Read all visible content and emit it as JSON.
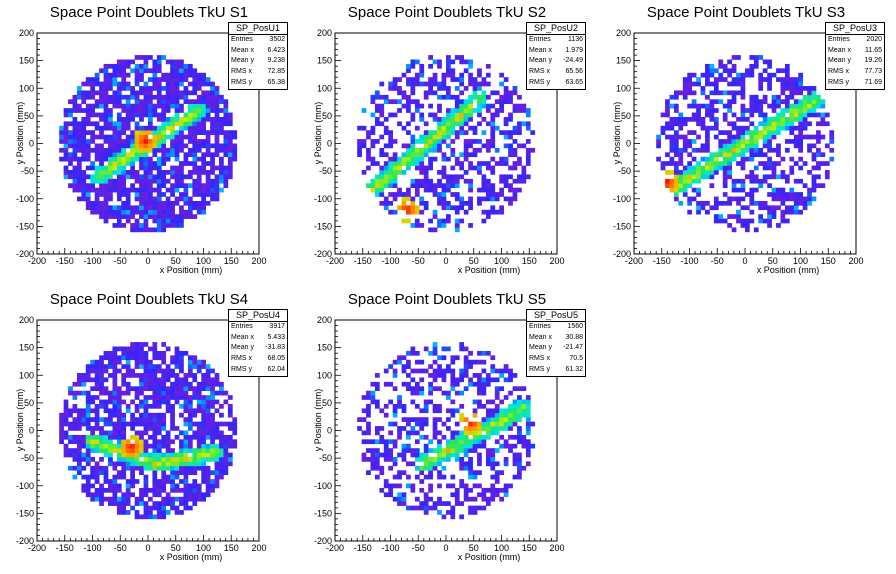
{
  "chart_data": [
    {
      "type": "heatmap",
      "title": "Space Point Doublets TkU S1",
      "xlabel": "x Position (mm)",
      "ylabel": "y Position (mm)",
      "xlim": [
        -200,
        200
      ],
      "ylim": [
        -200,
        200
      ],
      "x_ticks": [
        "-200",
        "-150",
        "-100",
        "-50",
        "0",
        "50",
        "100",
        "150",
        "200"
      ],
      "y_ticks": [
        "-200",
        "-150",
        "-100",
        "-50",
        "0",
        "50",
        "100",
        "150",
        "200"
      ],
      "detector_radius_mm": 160,
      "bin_size_mm": 8,
      "band": {
        "description": "diagonal",
        "from": [
          -90,
          -60
        ],
        "to": [
          90,
          60
        ],
        "hotspot": [
          -5,
          5
        ]
      },
      "stats": {
        "name": "SP_PosU1",
        "rows": [
          {
            "label": "Entries",
            "value": "3502"
          },
          {
            "label": "Mean x",
            "value": "6.423"
          },
          {
            "label": "Mean y",
            "value": "9.238"
          },
          {
            "label": "RMS x",
            "value": "72.85"
          },
          {
            "label": "RMS y",
            "value": "65.38"
          }
        ]
      }
    },
    {
      "type": "heatmap",
      "title": "Space Point Doublets TkU S2",
      "xlabel": "x Position (mm)",
      "ylabel": "y Position (mm)",
      "xlim": [
        -200,
        200
      ],
      "ylim": [
        -200,
        200
      ],
      "x_ticks": [
        "-200",
        "-150",
        "-100",
        "-50",
        "0",
        "50",
        "100",
        "150",
        "200"
      ],
      "y_ticks": [
        "-200",
        "-150",
        "-100",
        "-50",
        "0",
        "50",
        "100",
        "150",
        "200"
      ],
      "detector_radius_mm": 160,
      "bin_size_mm": 8,
      "band": {
        "description": "diagonal",
        "from": [
          -140,
          -90
        ],
        "to": [
          60,
          80
        ],
        "hotspot": [
          -70,
          -120
        ]
      },
      "stats": {
        "name": "SP_PosU2",
        "rows": [
          {
            "label": "Entries",
            "value": "1136"
          },
          {
            "label": "Mean x",
            "value": "1.979"
          },
          {
            "label": "Mean y",
            "value": "-24.49"
          },
          {
            "label": "RMS x",
            "value": "65.56"
          },
          {
            "label": "RMS y",
            "value": "63.65"
          }
        ]
      }
    },
    {
      "type": "heatmap",
      "title": "Space Point Doublets TkU S3",
      "xlabel": "x Position (mm)",
      "ylabel": "y Position (mm)",
      "xlim": [
        -200,
        200
      ],
      "ylim": [
        -200,
        200
      ],
      "x_ticks": [
        "-200",
        "-150",
        "-100",
        "-50",
        "0",
        "50",
        "100",
        "150",
        "200"
      ],
      "y_ticks": [
        "-200",
        "-150",
        "-100",
        "-50",
        "0",
        "50",
        "100",
        "150",
        "200"
      ],
      "detector_radius_mm": 160,
      "bin_size_mm": 8,
      "band": {
        "description": "diagonal",
        "from": [
          -130,
          -80
        ],
        "to": [
          130,
          80
        ],
        "hotspot": [
          -140,
          -70
        ]
      },
      "stats": {
        "name": "SP_PosU3",
        "rows": [
          {
            "label": "Entries",
            "value": "2020"
          },
          {
            "label": "Mean x",
            "value": "11.65"
          },
          {
            "label": "Mean y",
            "value": "19.26"
          },
          {
            "label": "RMS x",
            "value": "77.73"
          },
          {
            "label": "RMS y",
            "value": "71.69"
          }
        ]
      }
    },
    {
      "type": "heatmap",
      "title": "Space Point Doublets TkU S4",
      "xlabel": "x Position (mm)",
      "ylabel": "y Position (mm)",
      "xlim": [
        -200,
        200
      ],
      "ylim": [
        -200,
        200
      ],
      "x_ticks": [
        "-200",
        "-150",
        "-100",
        "-50",
        "0",
        "50",
        "100",
        "150",
        "200"
      ],
      "y_ticks": [
        "-200",
        "-150",
        "-100",
        "-50",
        "0",
        "50",
        "100",
        "150",
        "200"
      ],
      "detector_radius_mm": 160,
      "bin_size_mm": 8,
      "band": {
        "description": "curved",
        "from": [
          -100,
          -20
        ],
        "to": [
          120,
          -40
        ],
        "hotspot": [
          -30,
          -30
        ]
      },
      "stats": {
        "name": "SP_PosU4",
        "rows": [
          {
            "label": "Entries",
            "value": "3917"
          },
          {
            "label": "Mean x",
            "value": "5.433"
          },
          {
            "label": "Mean y",
            "value": "-31.83"
          },
          {
            "label": "RMS x",
            "value": "68.05"
          },
          {
            "label": "RMS y",
            "value": "62.04"
          }
        ]
      }
    },
    {
      "type": "heatmap",
      "title": "Space Point Doublets TkU S5",
      "xlabel": "x Position (mm)",
      "ylabel": "y Position (mm)",
      "xlim": [
        -200,
        200
      ],
      "ylim": [
        -200,
        200
      ],
      "x_ticks": [
        "-200",
        "-150",
        "-100",
        "-50",
        "0",
        "50",
        "100",
        "150",
        "200"
      ],
      "y_ticks": [
        "-200",
        "-150",
        "-100",
        "-50",
        "0",
        "50",
        "100",
        "150",
        "200"
      ],
      "detector_radius_mm": 160,
      "bin_size_mm": 8,
      "band": {
        "description": "diagonal",
        "from": [
          -40,
          -60
        ],
        "to": [
          140,
          40
        ],
        "hotspot": [
          45,
          15
        ]
      },
      "stats": {
        "name": "SP_PosU5",
        "rows": [
          {
            "label": "Entries",
            "value": "1560"
          },
          {
            "label": "Mean x",
            "value": "30.88"
          },
          {
            "label": "Mean y",
            "value": "-21.47"
          },
          {
            "label": "RMS x",
            "value": "70.5"
          },
          {
            "label": "RMS y",
            "value": "61.32"
          }
        ]
      }
    }
  ]
}
